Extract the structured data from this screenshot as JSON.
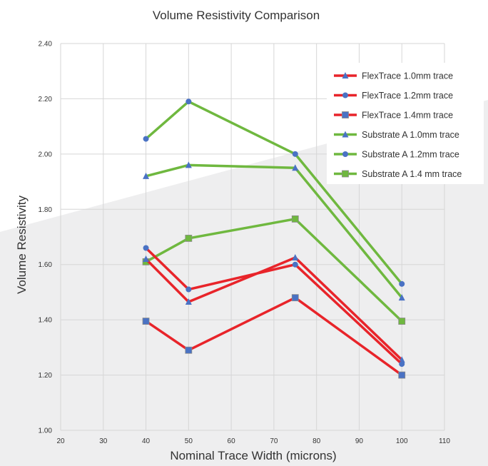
{
  "chart_data": {
    "type": "line",
    "title": "Volume Resistivity Comparison",
    "xlabel": "Nominal Trace Width (microns)",
    "ylabel": "Volume Resistivity",
    "xlim": [
      20,
      110
    ],
    "ylim": [
      1.0,
      2.4
    ],
    "xticks": [
      "20",
      "30",
      "40",
      "50",
      "60",
      "70",
      "80",
      "90",
      "100",
      "110"
    ],
    "yticks": [
      "1.00",
      "1.20",
      "1.40",
      "1.60",
      "1.80",
      "2.00",
      "2.20",
      "2.40"
    ],
    "grid": true,
    "legend_position": "top-right",
    "series": [
      {
        "name": "FlexTrace 1.0mm trace",
        "color": "#e8242a",
        "marker": "triangle",
        "marker_color": "#4a72c4",
        "x": [
          40,
          50,
          75,
          100
        ],
        "y": [
          1.62,
          1.465,
          1.625,
          1.255
        ]
      },
      {
        "name": "FlexTrace 1.2mm trace",
        "color": "#e8242a",
        "marker": "circle",
        "marker_color": "#4a72c4",
        "x": [
          40,
          50,
          75,
          100
        ],
        "y": [
          1.66,
          1.51,
          1.6,
          1.24
        ]
      },
      {
        "name": "FlexTrace 1.4mm trace",
        "color": "#e8242a",
        "marker": "square",
        "marker_color": "#4a72c4",
        "x": [
          40,
          50,
          75,
          100
        ],
        "y": [
          1.395,
          1.29,
          1.48,
          1.2
        ]
      },
      {
        "name": "Substrate A 1.0mm trace",
        "color": "#6fb83f",
        "marker": "triangle",
        "marker_color": "#4a72c4",
        "x": [
          40,
          50,
          75,
          100
        ],
        "y": [
          1.92,
          1.96,
          1.95,
          1.48
        ]
      },
      {
        "name": "Substrate A 1.2mm trace",
        "color": "#6fb83f",
        "marker": "circle",
        "marker_color": "#4a72c4",
        "x": [
          40,
          50,
          75,
          100
        ],
        "y": [
          2.055,
          2.19,
          2.0,
          1.53
        ]
      },
      {
        "name": "Substrate A 1.4 mm trace",
        "color": "#6fb83f",
        "marker": "square",
        "marker_color": "#6fb83f",
        "x": [
          40,
          50,
          75,
          100
        ],
        "y": [
          1.61,
          1.695,
          1.765,
          1.395
        ]
      }
    ]
  }
}
